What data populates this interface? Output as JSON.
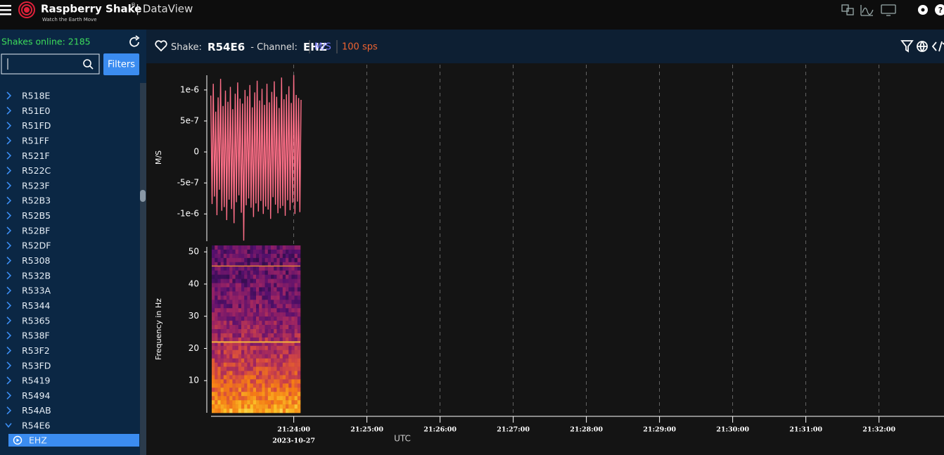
{
  "header": {
    "brand": "Raspberry Shake",
    "brand_mark": "®",
    "tagline": "Watch the Earth Move",
    "app": "| DataView"
  },
  "sidebar": {
    "online": "Shakes online: 2185",
    "filters_button": "Filters",
    "stations": [
      "R518E",
      "R51E0",
      "R51FD",
      "R51FF",
      "R521F",
      "R522C",
      "R523F",
      "R52B3",
      "R52B5",
      "R52BF",
      "R52DF",
      "R5308",
      "R532B",
      "R533A",
      "R5344",
      "R5365",
      "R538F",
      "R53F2",
      "R53FD",
      "R5419",
      "R5494",
      "R54AB",
      "R54E6"
    ],
    "selected_channel": "EHZ"
  },
  "toolbar": {
    "shake_label": "Shake:",
    "shake": "R54E6",
    "channel_label": "- Channel:",
    "channel": "EHZ",
    "units": "M/S",
    "rate": "100 sps"
  },
  "chart_data": [
    {
      "type": "line",
      "y_label": "M/S",
      "color": "#ff6f88",
      "x": [
        "21:22:52",
        "21:22:53",
        "21:22:54",
        "21:22:55",
        "21:22:56",
        "21:22:57",
        "21:22:58",
        "21:22:59",
        "21:23:00",
        "21:23:01",
        "21:23:02",
        "21:23:03",
        "21:23:04",
        "21:23:05",
        "21:23:06",
        "21:23:07",
        "21:23:08",
        "21:23:09",
        "21:23:10",
        "21:23:11",
        "21:23:12",
        "21:23:13",
        "21:23:14",
        "21:23:15",
        "21:23:16",
        "21:23:17",
        "21:23:18",
        "21:23:19",
        "21:23:20",
        "21:23:21",
        "21:23:22",
        "21:23:23",
        "21:23:24",
        "21:23:25",
        "21:23:26",
        "21:23:27",
        "21:23:28",
        "21:23:29",
        "21:23:30",
        "21:23:31",
        "21:23:32",
        "21:23:33",
        "21:23:34",
        "21:23:35",
        "21:23:36",
        "21:23:37",
        "21:23:38",
        "21:23:39",
        "21:23:40",
        "21:23:41",
        "21:23:42",
        "21:23:43",
        "21:23:44",
        "21:23:45",
        "21:23:46",
        "21:23:47",
        "21:23:48",
        "21:23:49",
        "21:23:50",
        "21:23:51",
        "21:23:52",
        "21:23:53",
        "21:23:54",
        "21:23:55",
        "21:23:56",
        "21:23:57",
        "21:23:58",
        "21:23:59",
        "21:24:00",
        "21:24:01",
        "21:24:02",
        "21:24:03",
        "21:24:04",
        "21:24:05",
        "21:24:06"
      ],
      "values": [
        9.1e-07,
        -8.4e-07,
        1.1e-06,
        -7.2e-07,
        6.5e-07,
        -1.02e-06,
        8.8e-07,
        -6.1e-07,
        1.18e-06,
        -9.5e-07,
        7.4e-07,
        -8.9e-07,
        9.9e-07,
        -1.1e-06,
        8.1e-07,
        -7.7e-07,
        1.05e-06,
        -9.2e-07,
        6.9e-07,
        -1.15e-06,
        9.4e-07,
        -8.1e-07,
        1.12e-06,
        -7e-07,
        8.6e-07,
        -9.8e-07,
        7.8e-07,
        -1.43e-06,
        1e-06,
        -8.6e-07,
        9e-07,
        -7.5e-07,
        1.08e-06,
        -9e-07,
        7.2e-07,
        -1.05e-06,
        9.6e-07,
        -8.3e-07,
        1.15e-06,
        -9.6e-07,
        8.3e-07,
        -7.9e-07,
        1.02e-06,
        -1e-06,
        7.6e-07,
        -8.8e-07,
        1.1e-06,
        -9.3e-07,
        8e-07,
        -1.08e-06,
        9.7e-07,
        -7.3e-07,
        1.14e-06,
        -8.5e-07,
        8.9e-07,
        -9.9e-07,
        7.1e-07,
        -9.1e-07,
        1.2e-06,
        -8.7e-07,
        8.5e-07,
        -1.03e-06,
        9.3e-07,
        -7.8e-07,
        1.06e-06,
        -9.4e-07,
        7.9e-07,
        -8.2e-07,
        1.24e-06,
        -1e-06,
        9.2e-07,
        -8e-07,
        8.7e-07,
        -9.7e-07,
        8.4e-07
      ],
      "ylim": [
        -1.44e-06,
        1.26e-06
      ],
      "yticks": [
        {
          "value": 1e-06,
          "label": "1e-6"
        },
        {
          "value": 5e-07,
          "label": "5e-7"
        },
        0,
        {
          "value": -5e-07,
          "label": "-5e-7"
        },
        {
          "value": -1e-06,
          "label": "-1e-6"
        }
      ],
      "xlim": [
        "21:22:51",
        "21:32:51"
      ],
      "xticks": [
        "21:24:00",
        "21:25:00",
        "21:26:00",
        "21:27:00",
        "21:28:00",
        "21:29:00",
        "21:30:00",
        "21:31:00",
        "21:32:00"
      ],
      "x_date": "2023-10-27",
      "x_label": "UTC",
      "grid": true
    },
    {
      "type": "heatmap",
      "y_label": "Frequency in Hz",
      "ylim": [
        0,
        52
      ],
      "yticks": [
        10,
        20,
        30,
        40,
        50
      ]
    }
  ]
}
